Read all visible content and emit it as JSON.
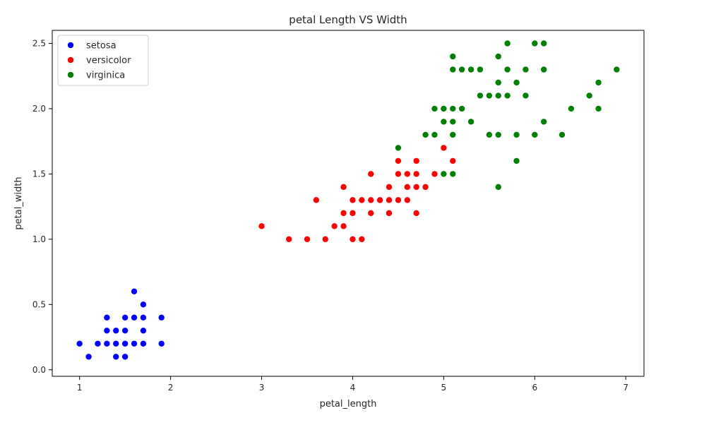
{
  "chart_data": {
    "type": "scatter",
    "title": "petal Length VS Width",
    "xlabel": "petal_length",
    "ylabel": "petal_width",
    "xlim": [
      0.7,
      7.2
    ],
    "ylim": [
      -0.05,
      2.6
    ],
    "xticks": [
      1,
      2,
      3,
      4,
      5,
      6,
      7
    ],
    "yticks": [
      0.0,
      0.5,
      1.0,
      1.5,
      2.0,
      2.5
    ],
    "xtick_labels": [
      "1",
      "2",
      "3",
      "4",
      "5",
      "6",
      "7"
    ],
    "ytick_labels": [
      "0.0",
      "0.5",
      "1.0",
      "1.5",
      "2.0",
      "2.5"
    ],
    "grid": false,
    "legend_position": "top-left",
    "series": [
      {
        "name": "setosa",
        "color": "#0000ff",
        "points": [
          [
            1.0,
            0.2
          ],
          [
            1.1,
            0.1
          ],
          [
            1.2,
            0.2
          ],
          [
            1.3,
            0.2
          ],
          [
            1.3,
            0.3
          ],
          [
            1.3,
            0.4
          ],
          [
            1.4,
            0.1
          ],
          [
            1.4,
            0.2
          ],
          [
            1.4,
            0.3
          ],
          [
            1.5,
            0.1
          ],
          [
            1.5,
            0.2
          ],
          [
            1.5,
            0.3
          ],
          [
            1.5,
            0.4
          ],
          [
            1.6,
            0.2
          ],
          [
            1.6,
            0.4
          ],
          [
            1.6,
            0.6
          ],
          [
            1.7,
            0.2
          ],
          [
            1.7,
            0.3
          ],
          [
            1.7,
            0.4
          ],
          [
            1.7,
            0.5
          ],
          [
            1.9,
            0.2
          ],
          [
            1.9,
            0.4
          ]
        ]
      },
      {
        "name": "versicolor",
        "color": "#ff0000",
        "points": [
          [
            3.0,
            1.1
          ],
          [
            3.3,
            1.0
          ],
          [
            3.5,
            1.0
          ],
          [
            3.6,
            1.3
          ],
          [
            3.7,
            1.0
          ],
          [
            3.8,
            1.1
          ],
          [
            3.9,
            1.1
          ],
          [
            3.9,
            1.2
          ],
          [
            3.9,
            1.4
          ],
          [
            4.0,
            1.0
          ],
          [
            4.0,
            1.2
          ],
          [
            4.0,
            1.3
          ],
          [
            4.1,
            1.0
          ],
          [
            4.1,
            1.3
          ],
          [
            4.2,
            1.2
          ],
          [
            4.2,
            1.3
          ],
          [
            4.2,
            1.5
          ],
          [
            4.3,
            1.3
          ],
          [
            4.4,
            1.2
          ],
          [
            4.4,
            1.3
          ],
          [
            4.4,
            1.4
          ],
          [
            4.5,
            1.3
          ],
          [
            4.5,
            1.5
          ],
          [
            4.5,
            1.6
          ],
          [
            4.6,
            1.3
          ],
          [
            4.6,
            1.4
          ],
          [
            4.6,
            1.5
          ],
          [
            4.7,
            1.2
          ],
          [
            4.7,
            1.4
          ],
          [
            4.7,
            1.5
          ],
          [
            4.7,
            1.6
          ],
          [
            4.8,
            1.4
          ],
          [
            4.9,
            1.5
          ],
          [
            5.0,
            1.7
          ],
          [
            5.1,
            1.6
          ]
        ]
      },
      {
        "name": "virginica",
        "color": "#008000",
        "points": [
          [
            4.5,
            1.7
          ],
          [
            4.8,
            1.8
          ],
          [
            4.9,
            1.8
          ],
          [
            4.9,
            2.0
          ],
          [
            5.0,
            1.5
          ],
          [
            5.0,
            1.9
          ],
          [
            5.0,
            2.0
          ],
          [
            5.1,
            1.5
          ],
          [
            5.1,
            1.8
          ],
          [
            5.1,
            1.9
          ],
          [
            5.1,
            2.0
          ],
          [
            5.1,
            2.3
          ],
          [
            5.1,
            2.4
          ],
          [
            5.2,
            2.0
          ],
          [
            5.2,
            2.3
          ],
          [
            5.3,
            1.9
          ],
          [
            5.3,
            2.3
          ],
          [
            5.4,
            2.1
          ],
          [
            5.4,
            2.3
          ],
          [
            5.5,
            1.8
          ],
          [
            5.5,
            2.1
          ],
          [
            5.6,
            1.4
          ],
          [
            5.6,
            1.8
          ],
          [
            5.6,
            2.1
          ],
          [
            5.6,
            2.2
          ],
          [
            5.6,
            2.4
          ],
          [
            5.7,
            2.1
          ],
          [
            5.7,
            2.3
          ],
          [
            5.7,
            2.5
          ],
          [
            5.8,
            1.6
          ],
          [
            5.8,
            1.8
          ],
          [
            5.8,
            2.2
          ],
          [
            5.9,
            2.1
          ],
          [
            5.9,
            2.3
          ],
          [
            6.0,
            1.8
          ],
          [
            6.0,
            2.5
          ],
          [
            6.1,
            1.9
          ],
          [
            6.1,
            2.3
          ],
          [
            6.1,
            2.5
          ],
          [
            6.3,
            1.8
          ],
          [
            6.4,
            2.0
          ],
          [
            6.6,
            2.1
          ],
          [
            6.7,
            2.0
          ],
          [
            6.7,
            2.2
          ],
          [
            6.9,
            2.3
          ]
        ]
      }
    ]
  }
}
